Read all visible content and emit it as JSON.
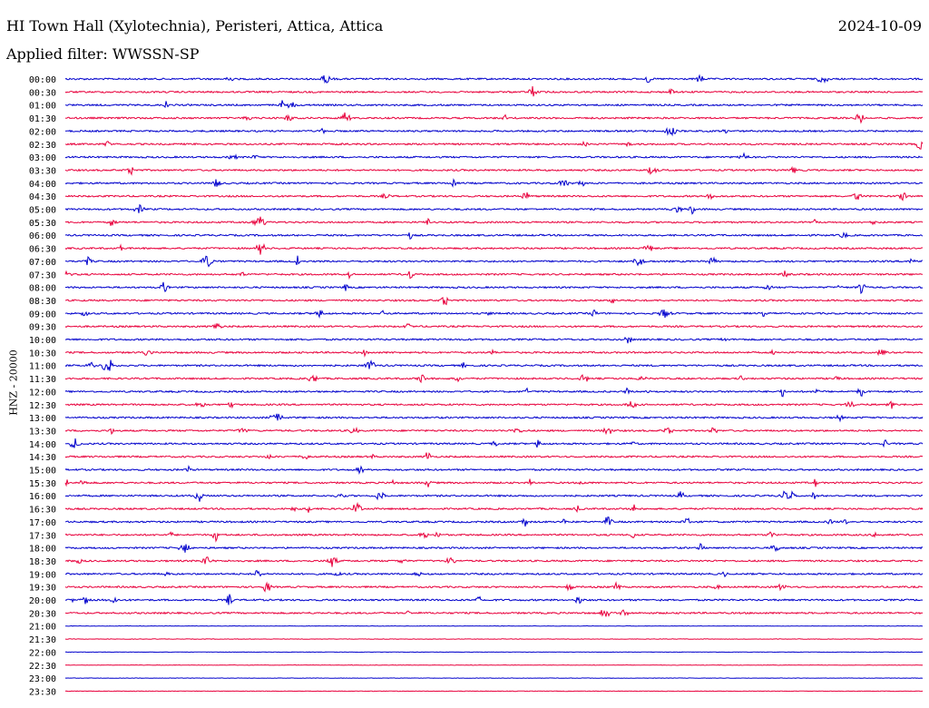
{
  "header": {
    "station_title": "HI Town Hall (Xylotechnia), Peristeri, Attica, Attica",
    "date": "2024-10-09",
    "filter_text": "Applied filter: WWSSN-SP"
  },
  "y_axis_label": "HNZ - 20000",
  "colors": {
    "blue": "#0000cc",
    "red": "#e8003c"
  },
  "chart_data": {
    "type": "line",
    "title": "",
    "ylabel": "HNZ - 20000",
    "grid": false,
    "row_labels": [
      "00:00",
      "00:30",
      "01:00",
      "01:30",
      "02:00",
      "02:30",
      "03:00",
      "03:30",
      "04:00",
      "04:30",
      "05:00",
      "05:30",
      "06:00",
      "06:30",
      "07:00",
      "07:30",
      "08:00",
      "08:30",
      "09:00",
      "09:30",
      "10:00",
      "10:30",
      "11:00",
      "11:30",
      "12:00",
      "12:30",
      "13:00",
      "13:30",
      "14:00",
      "14:30",
      "15:00",
      "15:30",
      "16:00",
      "16:30",
      "17:00",
      "17:30",
      "18:00",
      "18:30",
      "19:00",
      "19:30",
      "20:00",
      "20:30",
      "21:00",
      "21:30",
      "22:00",
      "22:30",
      "23:00",
      "23:30"
    ],
    "row_colors": [
      "blue",
      "red"
    ]
  }
}
